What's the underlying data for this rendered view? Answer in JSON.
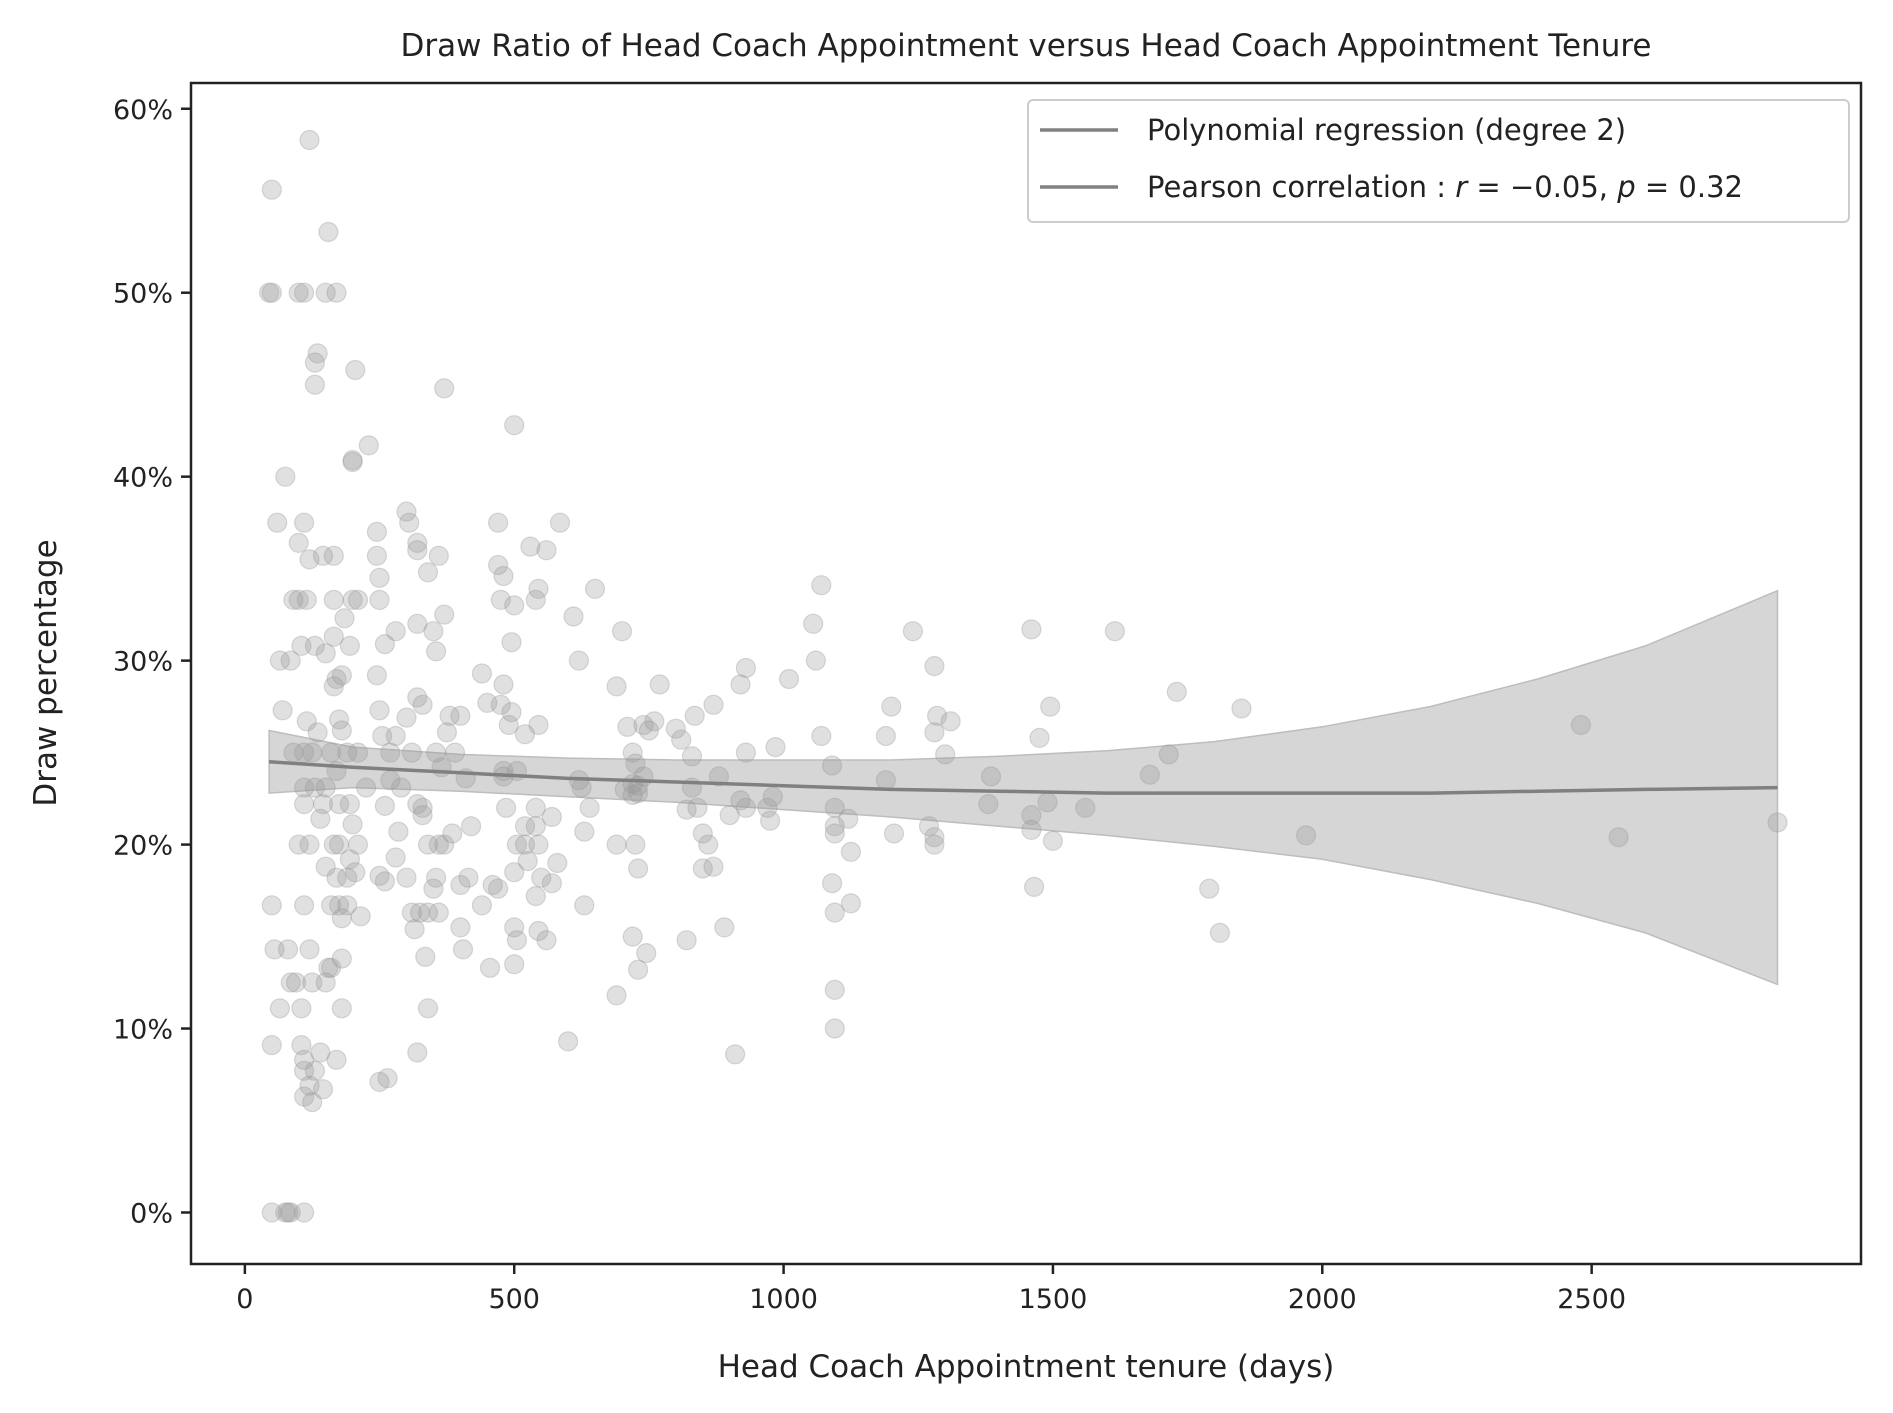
{
  "chart_data": {
    "type": "scatter",
    "title": "Draw Ratio of Head Coach Appointment versus Head Coach Appointment Tenure",
    "xlabel": "Head Coach Appointment tenure (days)",
    "ylabel": "Draw percentage",
    "xlim": [
      -100,
      3000
    ],
    "ylim": [
      -0.028,
      0.614
    ],
    "xticks": [
      0,
      500,
      1000,
      1500,
      2000,
      2500
    ],
    "xtick_labels": [
      "0",
      "500",
      "1000",
      "1500",
      "2000",
      "2500"
    ],
    "yticks": [
      0,
      0.1,
      0.2,
      0.3,
      0.4,
      0.5,
      0.6
    ],
    "ytick_labels": [
      "0%",
      "10%",
      "20%",
      "30%",
      "40%",
      "50%",
      "60%"
    ],
    "grid": false,
    "legend_position": "top-right",
    "colors": {
      "points": "#999999",
      "line": "#808080",
      "band": "#d6d6d6",
      "axes": "#222222"
    },
    "legend": [
      {
        "label": "Polynomial regression (degree 2)",
        "color": "#808080"
      },
      {
        "label": "Pearson correlation : r = −0.05, p = 0.32",
        "color": "#808080",
        "parts": [
          {
            "t": "Pearson correlation : ",
            "i": false
          },
          {
            "t": "r",
            "i": true
          },
          {
            "t": " = −0.05, ",
            "i": false
          },
          {
            "t": "p",
            "i": true
          },
          {
            "t": " = 0.32",
            "i": false
          }
        ]
      }
    ],
    "regression": {
      "x": [
        45,
        200,
        400,
        600,
        800,
        1000,
        1200,
        1400,
        1600,
        1800,
        2000,
        2200,
        2400,
        2600,
        2845
      ],
      "y": [
        0.245,
        0.242,
        0.239,
        0.236,
        0.234,
        0.232,
        0.23,
        0.229,
        0.228,
        0.228,
        0.228,
        0.228,
        0.229,
        0.23,
        0.231
      ],
      "ci_upper": [
        0.262,
        0.253,
        0.249,
        0.247,
        0.246,
        0.246,
        0.246,
        0.248,
        0.251,
        0.256,
        0.264,
        0.275,
        0.29,
        0.308,
        0.338
      ],
      "ci_lower": [
        0.228,
        0.231,
        0.229,
        0.226,
        0.223,
        0.219,
        0.215,
        0.21,
        0.205,
        0.199,
        0.192,
        0.181,
        0.168,
        0.152,
        0.124
      ]
    },
    "points": [
      [
        50,
        0.556
      ],
      [
        120,
        0.583
      ],
      [
        45,
        0.5
      ],
      [
        50,
        0.5
      ],
      [
        100,
        0.5
      ],
      [
        110,
        0.5
      ],
      [
        150,
        0.5
      ],
      [
        170,
        0.5
      ],
      [
        155,
        0.533
      ],
      [
        135,
        0.467
      ],
      [
        130,
        0.462
      ],
      [
        130,
        0.45
      ],
      [
        205,
        0.458
      ],
      [
        200,
        0.409
      ],
      [
        200,
        0.408
      ],
      [
        230,
        0.417
      ],
      [
        75,
        0.4
      ],
      [
        60,
        0.375
      ],
      [
        110,
        0.375
      ],
      [
        100,
        0.364
      ],
      [
        120,
        0.355
      ],
      [
        145,
        0.357
      ],
      [
        165,
        0.357
      ],
      [
        90,
        0.333
      ],
      [
        100,
        0.333
      ],
      [
        115,
        0.333
      ],
      [
        165,
        0.333
      ],
      [
        200,
        0.333
      ],
      [
        210,
        0.333
      ],
      [
        250,
        0.333
      ],
      [
        65,
        0.3
      ],
      [
        85,
        0.3
      ],
      [
        105,
        0.308
      ],
      [
        130,
        0.308
      ],
      [
        150,
        0.304
      ],
      [
        165,
        0.313
      ],
      [
        195,
        0.308
      ],
      [
        185,
        0.323
      ],
      [
        170,
        0.29
      ],
      [
        180,
        0.292
      ],
      [
        165,
        0.286
      ],
      [
        70,
        0.273
      ],
      [
        115,
        0.267
      ],
      [
        135,
        0.261
      ],
      [
        125,
        0.25
      ],
      [
        110,
        0.25
      ],
      [
        90,
        0.25
      ],
      [
        160,
        0.25
      ],
      [
        180,
        0.262
      ],
      [
        175,
        0.268
      ],
      [
        170,
        0.24
      ],
      [
        190,
        0.25
      ],
      [
        210,
        0.25
      ],
      [
        150,
        0.231
      ],
      [
        110,
        0.231
      ],
      [
        130,
        0.231
      ],
      [
        145,
        0.222
      ],
      [
        175,
        0.222
      ],
      [
        195,
        0.222
      ],
      [
        110,
        0.222
      ],
      [
        140,
        0.214
      ],
      [
        175,
        0.2
      ],
      [
        200,
        0.211
      ],
      [
        210,
        0.2
      ],
      [
        100,
        0.2
      ],
      [
        120,
        0.2
      ],
      [
        165,
        0.2
      ],
      [
        190,
        0.182
      ],
      [
        170,
        0.182
      ],
      [
        150,
        0.188
      ],
      [
        195,
        0.192
      ],
      [
        205,
        0.185
      ],
      [
        225,
        0.231
      ],
      [
        160,
        0.167
      ],
      [
        175,
        0.167
      ],
      [
        190,
        0.167
      ],
      [
        215,
        0.161
      ],
      [
        50,
        0.167
      ],
      [
        110,
        0.167
      ],
      [
        180,
        0.16
      ],
      [
        55,
        0.143
      ],
      [
        80,
        0.143
      ],
      [
        120,
        0.143
      ],
      [
        95,
        0.125
      ],
      [
        85,
        0.125
      ],
      [
        125,
        0.125
      ],
      [
        150,
        0.125
      ],
      [
        155,
        0.133
      ],
      [
        160,
        0.133
      ],
      [
        180,
        0.138
      ],
      [
        105,
        0.111
      ],
      [
        65,
        0.111
      ],
      [
        180,
        0.111
      ],
      [
        50,
        0.091
      ],
      [
        105,
        0.091
      ],
      [
        110,
        0.083
      ],
      [
        140,
        0.087
      ],
      [
        170,
        0.083
      ],
      [
        110,
        0.077
      ],
      [
        130,
        0.077
      ],
      [
        120,
        0.069
      ],
      [
        145,
        0.067
      ],
      [
        110,
        0.063
      ],
      [
        125,
        0.06
      ],
      [
        50,
        0
      ],
      [
        75,
        0
      ],
      [
        80,
        0
      ],
      [
        85,
        0
      ],
      [
        110,
        0
      ],
      [
        245,
        0.37
      ],
      [
        245,
        0.357
      ],
      [
        250,
        0.345
      ],
      [
        245,
        0.292
      ],
      [
        250,
        0.273
      ],
      [
        255,
        0.259
      ],
      [
        260,
        0.309
      ],
      [
        270,
        0.25
      ],
      [
        270,
        0.235
      ],
      [
        280,
        0.259
      ],
      [
        285,
        0.207
      ],
      [
        280,
        0.193
      ],
      [
        290,
        0.231
      ],
      [
        300,
        0.381
      ],
      [
        305,
        0.375
      ],
      [
        320,
        0.364
      ],
      [
        320,
        0.36
      ],
      [
        340,
        0.348
      ],
      [
        360,
        0.357
      ],
      [
        280,
        0.316
      ],
      [
        320,
        0.32
      ],
      [
        300,
        0.269
      ],
      [
        310,
        0.25
      ],
      [
        320,
        0.28
      ],
      [
        330,
        0.276
      ],
      [
        320,
        0.222
      ],
      [
        330,
        0.22
      ],
      [
        330,
        0.216
      ],
      [
        340,
        0.2
      ],
      [
        300,
        0.182
      ],
      [
        310,
        0.163
      ],
      [
        315,
        0.154
      ],
      [
        325,
        0.163
      ],
      [
        340,
        0.163
      ],
      [
        260,
        0.18
      ],
      [
        250,
        0.183
      ],
      [
        260,
        0.221
      ],
      [
        335,
        0.139
      ],
      [
        340,
        0.111
      ],
      [
        320,
        0.087
      ],
      [
        250,
        0.071
      ],
      [
        265,
        0.073
      ],
      [
        350,
        0.316
      ],
      [
        355,
        0.305
      ],
      [
        370,
        0.448
      ],
      [
        370,
        0.325
      ],
      [
        355,
        0.25
      ],
      [
        365,
        0.242
      ],
      [
        375,
        0.261
      ],
      [
        380,
        0.27
      ],
      [
        390,
        0.25
      ],
      [
        370,
        0.2
      ],
      [
        385,
        0.206
      ],
      [
        360,
        0.2
      ],
      [
        355,
        0.182
      ],
      [
        360,
        0.163
      ],
      [
        350,
        0.176
      ],
      [
        400,
        0.178
      ],
      [
        415,
        0.182
      ],
      [
        420,
        0.21
      ],
      [
        410,
        0.236
      ],
      [
        400,
        0.27
      ],
      [
        405,
        0.143
      ],
      [
        400,
        0.155
      ],
      [
        440,
        0.167
      ],
      [
        450,
        0.277
      ],
      [
        440,
        0.293
      ],
      [
        455,
        0.133
      ],
      [
        470,
        0.375
      ],
      [
        470,
        0.352
      ],
      [
        475,
        0.333
      ],
      [
        480,
        0.346
      ],
      [
        475,
        0.276
      ],
      [
        480,
        0.287
      ],
      [
        480,
        0.24
      ],
      [
        480,
        0.237
      ],
      [
        490,
        0.265
      ],
      [
        495,
        0.272
      ],
      [
        500,
        0.33
      ],
      [
        495,
        0.31
      ],
      [
        505,
        0.24
      ],
      [
        505,
        0.2
      ],
      [
        500,
        0.185
      ],
      [
        500,
        0.155
      ],
      [
        505,
        0.148
      ],
      [
        500,
        0.135
      ],
      [
        500,
        0.428
      ],
      [
        460,
        0.178
      ],
      [
        485,
        0.22
      ],
      [
        470,
        0.176
      ],
      [
        520,
        0.26
      ],
      [
        520,
        0.21
      ],
      [
        520,
        0.2
      ],
      [
        525,
        0.191
      ],
      [
        530,
        0.362
      ],
      [
        540,
        0.333
      ],
      [
        545,
        0.339
      ],
      [
        545,
        0.265
      ],
      [
        540,
        0.22
      ],
      [
        540,
        0.21
      ],
      [
        545,
        0.2
      ],
      [
        550,
        0.182
      ],
      [
        540,
        0.172
      ],
      [
        545,
        0.153
      ],
      [
        560,
        0.148
      ],
      [
        560,
        0.36
      ],
      [
        585,
        0.375
      ],
      [
        570,
        0.215
      ],
      [
        570,
        0.179
      ],
      [
        580,
        0.19
      ],
      [
        600,
        0.093
      ],
      [
        610,
        0.324
      ],
      [
        620,
        0.3
      ],
      [
        620,
        0.235
      ],
      [
        625,
        0.231
      ],
      [
        630,
        0.207
      ],
      [
        630,
        0.167
      ],
      [
        640,
        0.22
      ],
      [
        650,
        0.339
      ],
      [
        690,
        0.286
      ],
      [
        700,
        0.316
      ],
      [
        690,
        0.2
      ],
      [
        705,
        0.23
      ],
      [
        710,
        0.264
      ],
      [
        720,
        0.25
      ],
      [
        725,
        0.244
      ],
      [
        720,
        0.227
      ],
      [
        720,
        0.233
      ],
      [
        730,
        0.232
      ],
      [
        730,
        0.228
      ],
      [
        725,
        0.2
      ],
      [
        730,
        0.187
      ],
      [
        720,
        0.15
      ],
      [
        730,
        0.132
      ],
      [
        690,
        0.118
      ],
      [
        740,
        0.237
      ],
      [
        740,
        0.265
      ],
      [
        750,
        0.262
      ],
      [
        760,
        0.267
      ],
      [
        745,
        0.141
      ],
      [
        770,
        0.287
      ],
      [
        800,
        0.263
      ],
      [
        810,
        0.257
      ],
      [
        820,
        0.219
      ],
      [
        820,
        0.148
      ],
      [
        830,
        0.231
      ],
      [
        830,
        0.248
      ],
      [
        835,
        0.27
      ],
      [
        840,
        0.22
      ],
      [
        850,
        0.206
      ],
      [
        850,
        0.187
      ],
      [
        860,
        0.2
      ],
      [
        870,
        0.188
      ],
      [
        870,
        0.276
      ],
      [
        880,
        0.237
      ],
      [
        890,
        0.155
      ],
      [
        900,
        0.216
      ],
      [
        910,
        0.086
      ],
      [
        920,
        0.224
      ],
      [
        920,
        0.287
      ],
      [
        930,
        0.296
      ],
      [
        930,
        0.25
      ],
      [
        930,
        0.22
      ],
      [
        970,
        0.22
      ],
      [
        975,
        0.213
      ],
      [
        980,
        0.226
      ],
      [
        985,
        0.253
      ],
      [
        1010,
        0.29
      ],
      [
        1055,
        0.32
      ],
      [
        1060,
        0.3
      ],
      [
        1070,
        0.341
      ],
      [
        1070,
        0.259
      ],
      [
        1090,
        0.243
      ],
      [
        1095,
        0.22
      ],
      [
        1095,
        0.21
      ],
      [
        1095,
        0.206
      ],
      [
        1090,
        0.179
      ],
      [
        1095,
        0.163
      ],
      [
        1095,
        0.121
      ],
      [
        1095,
        0.1
      ],
      [
        1120,
        0.214
      ],
      [
        1125,
        0.196
      ],
      [
        1125,
        0.168
      ],
      [
        1190,
        0.235
      ],
      [
        1190,
        0.259
      ],
      [
        1200,
        0.275
      ],
      [
        1205,
        0.206
      ],
      [
        1240,
        0.316
      ],
      [
        1270,
        0.21
      ],
      [
        1280,
        0.297
      ],
      [
        1280,
        0.261
      ],
      [
        1285,
        0.27
      ],
      [
        1280,
        0.204
      ],
      [
        1280,
        0.2
      ],
      [
        1300,
        0.249
      ],
      [
        1310,
        0.267
      ],
      [
        1380,
        0.222
      ],
      [
        1385,
        0.237
      ],
      [
        1460,
        0.317
      ],
      [
        1460,
        0.216
      ],
      [
        1460,
        0.208
      ],
      [
        1465,
        0.177
      ],
      [
        1475,
        0.258
      ],
      [
        1490,
        0.223
      ],
      [
        1495,
        0.275
      ],
      [
        1500,
        0.202
      ],
      [
        1560,
        0.22
      ],
      [
        1615,
        0.316
      ],
      [
        1680,
        0.238
      ],
      [
        1715,
        0.249
      ],
      [
        1730,
        0.283
      ],
      [
        1790,
        0.176
      ],
      [
        1810,
        0.152
      ],
      [
        1850,
        0.274
      ],
      [
        1970,
        0.205
      ],
      [
        2480,
        0.265
      ],
      [
        2550,
        0.204
      ],
      [
        2845,
        0.212
      ]
    ]
  }
}
